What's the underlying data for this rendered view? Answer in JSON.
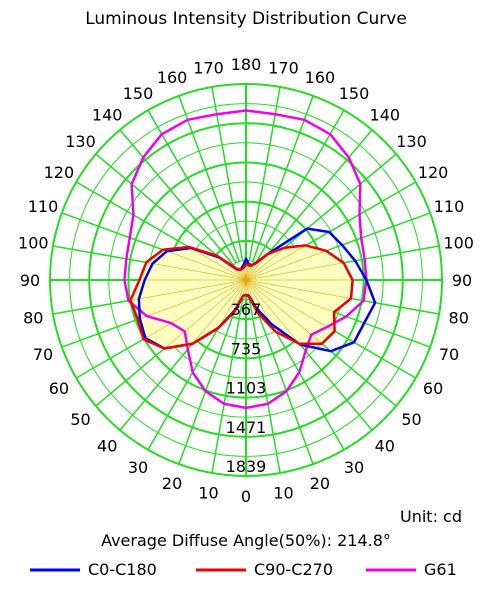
{
  "chart_data": {
    "type": "polar",
    "title": "Luminous Intensity Distribution Curve",
    "unit_text": "Unit: cd",
    "average_angle_text": "Average Diffuse Angle(50%): 214.8°",
    "radial_tick_labels": [
      "367",
      "735",
      "1103",
      "1471",
      "1839"
    ],
    "radial_ticks": [
      367,
      735,
      1103,
      1471,
      1839
    ],
    "r_max": 1839,
    "angle_step_deg": 10,
    "angle_labels_right": [
      "0",
      "10",
      "20",
      "30",
      "40",
      "50",
      "60",
      "70",
      "80",
      "90",
      "100",
      "110",
      "120",
      "130",
      "140",
      "150",
      "160",
      "170",
      "180"
    ],
    "angle_labels_left": [
      "10",
      "20",
      "30",
      "40",
      "50",
      "60",
      "70",
      "80",
      "90",
      "100",
      "110",
      "120",
      "130",
      "140",
      "150",
      "160",
      "170"
    ],
    "grid": true,
    "legend_position": "bottom",
    "colors": {
      "grid": "#22dd22",
      "fill": "#ffffc0"
    },
    "series": [
      {
        "name": "C0-C180",
        "color": "#0000ee",
        "angles": [
          0,
          10,
          20,
          30,
          40,
          50,
          60,
          70,
          80,
          90,
          100,
          110,
          120,
          130,
          140,
          150,
          160,
          170,
          180
        ],
        "right": [
          140,
          150,
          280,
          480,
          790,
          1040,
          1170,
          1180,
          1230,
          1130,
          1040,
          960,
          900,
          750,
          320,
          180,
          150,
          150,
          200
        ],
        "left": [
          140,
          150,
          300,
          520,
          780,
          1000,
          1090,
          1060,
          1020,
          950,
          890,
          790,
          600,
          330,
          130,
          110,
          120,
          140,
          200
        ]
      },
      {
        "name": "C90-C270",
        "color": "#ee0000",
        "angles": [
          0,
          10,
          20,
          30,
          40,
          50,
          60,
          70,
          80,
          90,
          100,
          110,
          120,
          130,
          140,
          150,
          160,
          170,
          180
        ],
        "right": [
          140,
          160,
          330,
          560,
          780,
          930,
          960,
          880,
          1000,
          1000,
          930,
          800,
          650,
          470,
          320,
          190,
          140,
          140,
          150
        ],
        "left": [
          140,
          150,
          320,
          520,
          780,
          1000,
          1110,
          1080,
          1100,
          1000,
          950,
          830,
          620,
          350,
          140,
          110,
          110,
          120,
          150
        ]
      },
      {
        "name": "G61",
        "color": "#ee00ee",
        "angles": [
          0,
          10,
          20,
          30,
          40,
          50,
          60,
          70,
          80,
          90,
          100,
          110,
          120,
          130,
          140,
          150,
          160,
          170,
          180
        ],
        "right": [
          1200,
          1180,
          1110,
          1000,
          870,
          800,
          880,
          1000,
          1120,
          1130,
          1130,
          1150,
          1230,
          1400,
          1500,
          1580,
          1600,
          1580,
          1590
        ],
        "left": [
          1200,
          1180,
          1110,
          1000,
          850,
          750,
          810,
          990,
          1120,
          1140,
          1140,
          1160,
          1220,
          1400,
          1500,
          1580,
          1600,
          1580,
          1590
        ]
      }
    ]
  }
}
